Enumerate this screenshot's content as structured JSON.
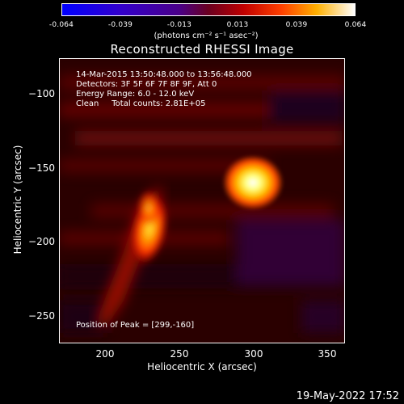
{
  "colorbar": {
    "ticks": [
      "-0.064",
      "-0.039",
      "-0.013",
      "0.013",
      "0.039",
      "0.064"
    ],
    "units": "(photons cm⁻² s⁻¹ asec⁻²)"
  },
  "title": "Reconstructed RHESSI Image",
  "info": {
    "time": "14-Mar-2015 13:50:48.000 to 13:56:48.000",
    "detectors": "Detectors: 3F 5F 6F 7F 8F 9F, Att 0",
    "energy": "Energy Range: 6.0 - 12.0 keV",
    "clean": "Clean     Total counts: 2.81E+05",
    "peak": "Position of Peak = [299,-160]"
  },
  "axes": {
    "xlabel": "Heliocentric X (arcsec)",
    "ylabel": "Heliocentric Y (arcsec)",
    "xticks": [
      "200",
      "250",
      "300",
      "350"
    ],
    "yticks": [
      "−100",
      "−150",
      "−200",
      "−250"
    ]
  },
  "datestamp": "19-May-2022 17:52",
  "colors": {
    "background": "#000000",
    "text": "#ffffff"
  }
}
